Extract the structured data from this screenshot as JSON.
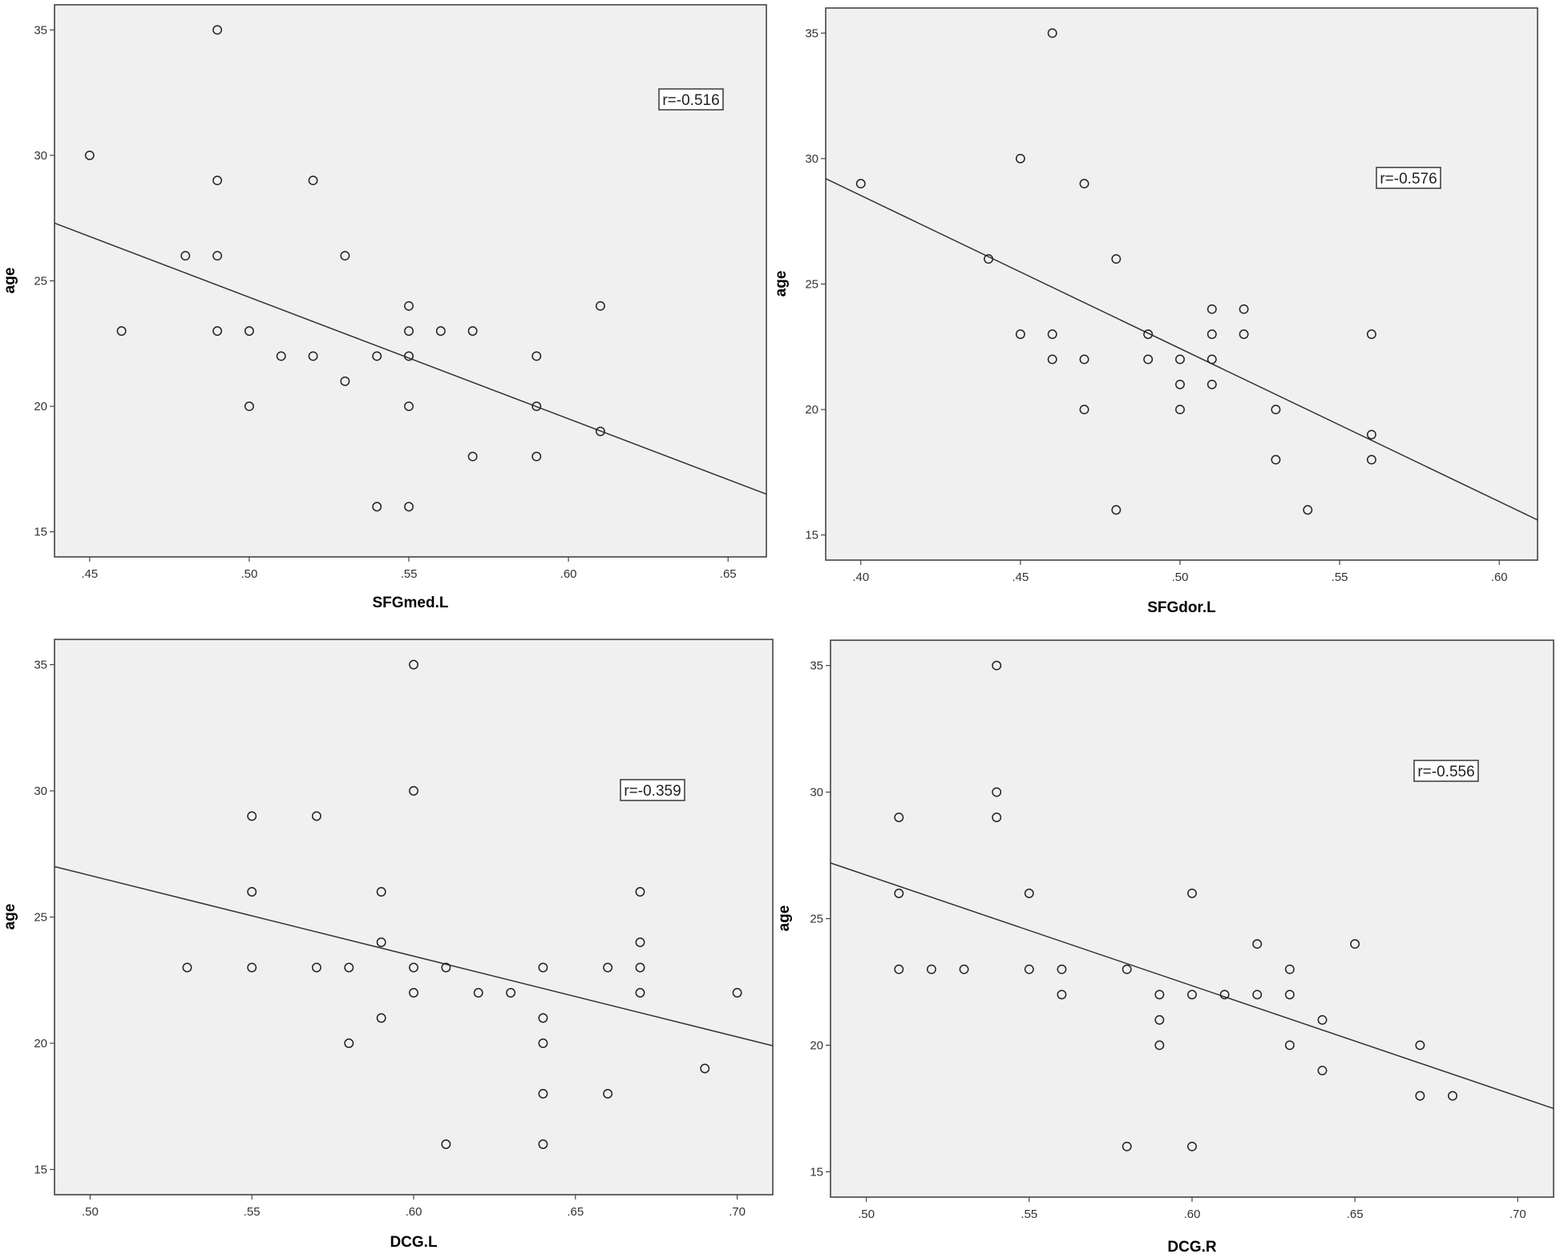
{
  "chart_data": [
    {
      "type": "scatter",
      "xlabel": "SFGmed.L",
      "ylabel": "age",
      "annotation": "r=-0.516",
      "xlim": [
        0.439,
        0.662
      ],
      "ylim": [
        14.0,
        36.0
      ],
      "xticks": [
        0.45,
        0.5,
        0.55,
        0.6,
        0.65
      ],
      "xtick_labels": [
        ".45",
        ".50",
        ".55",
        ".60",
        ".65"
      ],
      "yticks": [
        15,
        20,
        25,
        30,
        35
      ],
      "ytick_labels": [
        "15",
        "20",
        "25",
        "30",
        "35"
      ],
      "fit_line": {
        "x": [
          0.439,
          0.662
        ],
        "y": [
          27.3,
          16.5
        ]
      },
      "points": [
        {
          "x": 0.45,
          "y": 30
        },
        {
          "x": 0.46,
          "y": 23
        },
        {
          "x": 0.48,
          "y": 26
        },
        {
          "x": 0.49,
          "y": 35
        },
        {
          "x": 0.49,
          "y": 29
        },
        {
          "x": 0.49,
          "y": 26
        },
        {
          "x": 0.49,
          "y": 23
        },
        {
          "x": 0.5,
          "y": 23
        },
        {
          "x": 0.5,
          "y": 20
        },
        {
          "x": 0.51,
          "y": 22
        },
        {
          "x": 0.52,
          "y": 29
        },
        {
          "x": 0.52,
          "y": 22
        },
        {
          "x": 0.53,
          "y": 26
        },
        {
          "x": 0.53,
          "y": 21
        },
        {
          "x": 0.54,
          "y": 22
        },
        {
          "x": 0.54,
          "y": 16
        },
        {
          "x": 0.55,
          "y": 24
        },
        {
          "x": 0.55,
          "y": 23
        },
        {
          "x": 0.55,
          "y": 22
        },
        {
          "x": 0.55,
          "y": 20
        },
        {
          "x": 0.55,
          "y": 16
        },
        {
          "x": 0.56,
          "y": 23
        },
        {
          "x": 0.57,
          "y": 23
        },
        {
          "x": 0.57,
          "y": 18
        },
        {
          "x": 0.59,
          "y": 22
        },
        {
          "x": 0.59,
          "y": 20
        },
        {
          "x": 0.59,
          "y": 18
        },
        {
          "x": 0.61,
          "y": 24
        },
        {
          "x": 0.61,
          "y": 19
        }
      ]
    },
    {
      "type": "scatter",
      "xlabel": "SFGdor.L",
      "ylabel": "age",
      "annotation": "r=-0.576",
      "xlim": [
        0.389,
        0.612
      ],
      "ylim": [
        14.0,
        36.0
      ],
      "xticks": [
        0.4,
        0.45,
        0.5,
        0.55,
        0.6
      ],
      "xtick_labels": [
        ".40",
        ".45",
        ".50",
        ".55",
        ".60"
      ],
      "yticks": [
        15,
        20,
        25,
        30,
        35
      ],
      "ytick_labels": [
        "15",
        "20",
        "25",
        "30",
        "35"
      ],
      "fit_line": {
        "x": [
          0.389,
          0.612
        ],
        "y": [
          29.2,
          15.6
        ]
      },
      "points": [
        {
          "x": 0.4,
          "y": 29
        },
        {
          "x": 0.44,
          "y": 26
        },
        {
          "x": 0.45,
          "y": 30
        },
        {
          "x": 0.45,
          "y": 23
        },
        {
          "x": 0.46,
          "y": 35
        },
        {
          "x": 0.46,
          "y": 23
        },
        {
          "x": 0.46,
          "y": 22
        },
        {
          "x": 0.47,
          "y": 29
        },
        {
          "x": 0.47,
          "y": 22
        },
        {
          "x": 0.47,
          "y": 20
        },
        {
          "x": 0.48,
          "y": 26
        },
        {
          "x": 0.48,
          "y": 16
        },
        {
          "x": 0.49,
          "y": 23
        },
        {
          "x": 0.49,
          "y": 22
        },
        {
          "x": 0.5,
          "y": 22
        },
        {
          "x": 0.5,
          "y": 21
        },
        {
          "x": 0.5,
          "y": 20
        },
        {
          "x": 0.51,
          "y": 24
        },
        {
          "x": 0.51,
          "y": 23
        },
        {
          "x": 0.51,
          "y": 22
        },
        {
          "x": 0.51,
          "y": 21
        },
        {
          "x": 0.52,
          "y": 24
        },
        {
          "x": 0.52,
          "y": 23
        },
        {
          "x": 0.53,
          "y": 20
        },
        {
          "x": 0.53,
          "y": 18
        },
        {
          "x": 0.54,
          "y": 16
        },
        {
          "x": 0.56,
          "y": 23
        },
        {
          "x": 0.56,
          "y": 19
        },
        {
          "x": 0.56,
          "y": 18
        }
      ]
    },
    {
      "type": "scatter",
      "xlabel": "DCG.L",
      "ylabel": "age",
      "annotation": "r=-0.359",
      "xlim": [
        0.489,
        0.711
      ],
      "ylim": [
        14.0,
        36.0
      ],
      "xticks": [
        0.5,
        0.55,
        0.6,
        0.65,
        0.7
      ],
      "xtick_labels": [
        ".50",
        ".55",
        ".60",
        ".65",
        ".70"
      ],
      "yticks": [
        15,
        20,
        25,
        30,
        35
      ],
      "ytick_labels": [
        "15",
        "20",
        "25",
        "30",
        "35"
      ],
      "fit_line": {
        "x": [
          0.489,
          0.711
        ],
        "y": [
          27.0,
          19.9
        ]
      },
      "points": [
        {
          "x": 0.53,
          "y": 23
        },
        {
          "x": 0.55,
          "y": 29
        },
        {
          "x": 0.55,
          "y": 26
        },
        {
          "x": 0.55,
          "y": 23
        },
        {
          "x": 0.57,
          "y": 29
        },
        {
          "x": 0.57,
          "y": 23
        },
        {
          "x": 0.58,
          "y": 23
        },
        {
          "x": 0.58,
          "y": 20
        },
        {
          "x": 0.59,
          "y": 26
        },
        {
          "x": 0.59,
          "y": 24
        },
        {
          "x": 0.59,
          "y": 21
        },
        {
          "x": 0.6,
          "y": 35
        },
        {
          "x": 0.6,
          "y": 30
        },
        {
          "x": 0.6,
          "y": 23
        },
        {
          "x": 0.6,
          "y": 22
        },
        {
          "x": 0.61,
          "y": 23
        },
        {
          "x": 0.61,
          "y": 16
        },
        {
          "x": 0.62,
          "y": 22
        },
        {
          "x": 0.63,
          "y": 22
        },
        {
          "x": 0.64,
          "y": 23
        },
        {
          "x": 0.64,
          "y": 21
        },
        {
          "x": 0.64,
          "y": 20
        },
        {
          "x": 0.64,
          "y": 18
        },
        {
          "x": 0.64,
          "y": 16
        },
        {
          "x": 0.66,
          "y": 23
        },
        {
          "x": 0.66,
          "y": 18
        },
        {
          "x": 0.67,
          "y": 26
        },
        {
          "x": 0.67,
          "y": 24
        },
        {
          "x": 0.67,
          "y": 23
        },
        {
          "x": 0.67,
          "y": 22
        },
        {
          "x": 0.69,
          "y": 19
        },
        {
          "x": 0.7,
          "y": 22
        }
      ]
    },
    {
      "type": "scatter",
      "xlabel": "DCG.R",
      "ylabel": "age",
      "annotation": "r=-0.556",
      "xlim": [
        0.489,
        0.711
      ],
      "ylim": [
        14.0,
        36.0
      ],
      "xticks": [
        0.5,
        0.55,
        0.6,
        0.65,
        0.7
      ],
      "xtick_labels": [
        ".50",
        ".55",
        ".60",
        ".65",
        ".70"
      ],
      "yticks": [
        15,
        20,
        25,
        30,
        35
      ],
      "ytick_labels": [
        "15",
        "20",
        "25",
        "30",
        "35"
      ],
      "fit_line": {
        "x": [
          0.489,
          0.711
        ],
        "y": [
          27.2,
          17.5
        ]
      },
      "points": [
        {
          "x": 0.51,
          "y": 29
        },
        {
          "x": 0.51,
          "y": 26
        },
        {
          "x": 0.51,
          "y": 23
        },
        {
          "x": 0.52,
          "y": 23
        },
        {
          "x": 0.53,
          "y": 23
        },
        {
          "x": 0.54,
          "y": 35
        },
        {
          "x": 0.54,
          "y": 30
        },
        {
          "x": 0.54,
          "y": 29
        },
        {
          "x": 0.55,
          "y": 26
        },
        {
          "x": 0.55,
          "y": 23
        },
        {
          "x": 0.56,
          "y": 23
        },
        {
          "x": 0.56,
          "y": 22
        },
        {
          "x": 0.58,
          "y": 23
        },
        {
          "x": 0.58,
          "y": 16
        },
        {
          "x": 0.59,
          "y": 22
        },
        {
          "x": 0.59,
          "y": 21
        },
        {
          "x": 0.59,
          "y": 20
        },
        {
          "x": 0.6,
          "y": 26
        },
        {
          "x": 0.6,
          "y": 22
        },
        {
          "x": 0.6,
          "y": 16
        },
        {
          "x": 0.61,
          "y": 22
        },
        {
          "x": 0.62,
          "y": 24
        },
        {
          "x": 0.62,
          "y": 22
        },
        {
          "x": 0.63,
          "y": 23
        },
        {
          "x": 0.63,
          "y": 22
        },
        {
          "x": 0.63,
          "y": 20
        },
        {
          "x": 0.64,
          "y": 21
        },
        {
          "x": 0.64,
          "y": 19
        },
        {
          "x": 0.65,
          "y": 24
        },
        {
          "x": 0.67,
          "y": 20
        },
        {
          "x": 0.67,
          "y": 18
        },
        {
          "x": 0.68,
          "y": 18
        }
      ]
    }
  ],
  "colors": {
    "plot_background": "#f0f0f0",
    "frame": "#444444",
    "marker_stroke": "#222222",
    "fit_line": "#333333",
    "text": "#222222"
  }
}
